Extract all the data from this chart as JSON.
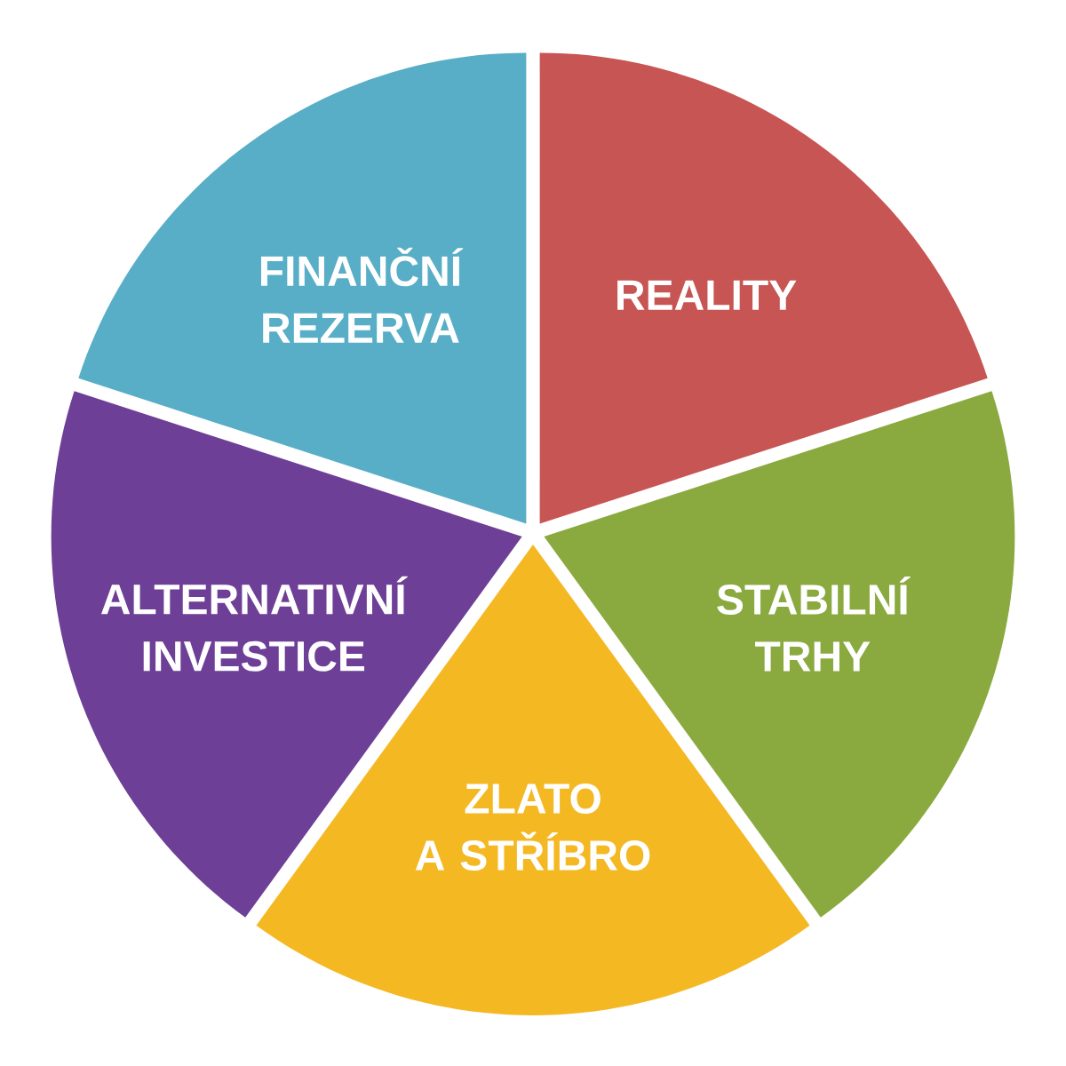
{
  "chart_data": {
    "type": "pie",
    "categories": [
      "REALITY",
      "STABILNÍ TRHY",
      "ZLATO A STŘÍBRO",
      "ALTERNATIVNÍ INVESTICE",
      "FINANČNÍ REZERVA"
    ],
    "values": [
      20,
      20,
      20,
      20,
      20
    ],
    "colors": [
      "#c75553",
      "#8aaa40",
      "#f4b822",
      "#6e3f96",
      "#58aec6"
    ]
  }
}
